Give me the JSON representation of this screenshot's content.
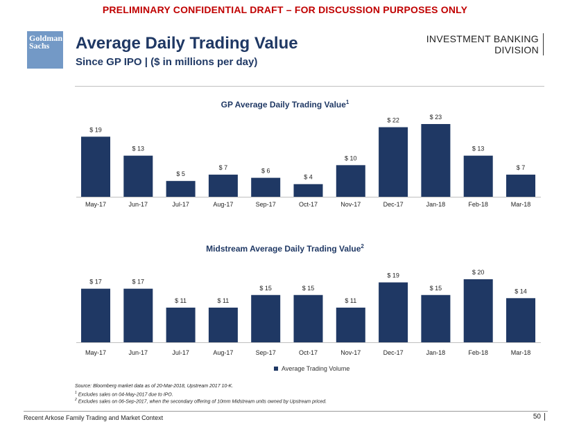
{
  "banner": "PRELIMINARY CONFIDENTIAL DRAFT – FOR DISCUSSION PURPOSES ONLY",
  "logo": {
    "line1": "Goldman",
    "line2": "Sachs"
  },
  "title": "Average Daily Trading Value",
  "subtitle": "Since GP IPO | ($ in millions per day)",
  "division": {
    "line1": "INVESTMENT BANKING",
    "line2": "DIVISION"
  },
  "colors": {
    "bar": "#1f3864",
    "title": "#1f3864",
    "banner": "#c00000"
  },
  "chart_data": [
    {
      "type": "bar",
      "title": "GP Average Daily Trading Value",
      "title_footnote": "1",
      "categories": [
        "May-17",
        "Jun-17",
        "Jul-17",
        "Aug-17",
        "Sep-17",
        "Oct-17",
        "Nov-17",
        "Dec-17",
        "Jan-18",
        "Feb-18",
        "Mar-18"
      ],
      "values": [
        19,
        13,
        5,
        7,
        6,
        4,
        10,
        22,
        23,
        13,
        7
      ],
      "data_labels": [
        "$ 19",
        "$ 13",
        "$ 5",
        "$ 7",
        "$ 6",
        "$ 4",
        "$ 10",
        "$ 22",
        "$ 23",
        "$ 13",
        "$ 7"
      ],
      "xlabel": "",
      "ylabel": "",
      "ylim": [
        0,
        23
      ]
    },
    {
      "type": "bar",
      "title": "Midstream Average Daily Trading Value",
      "title_footnote": "2",
      "categories": [
        "May-17",
        "Jun-17",
        "Jul-17",
        "Aug-17",
        "Sep-17",
        "Oct-17",
        "Nov-17",
        "Dec-17",
        "Jan-18",
        "Feb-18",
        "Mar-18"
      ],
      "values": [
        17,
        17,
        11,
        11,
        15,
        15,
        11,
        19,
        15,
        20,
        14
      ],
      "data_labels": [
        "$ 17",
        "$ 17",
        "$ 11",
        "$ 11",
        "$ 15",
        "$ 15",
        "$ 11",
        "$ 19",
        "$ 15",
        "$ 20",
        "$ 14"
      ],
      "legend": "Average Trading Volume",
      "xlabel": "",
      "ylabel": "",
      "ylim": [
        0,
        20
      ]
    }
  ],
  "notes": {
    "source": "Source: Bloomberg market data as of 20-Mar-2018, Upstream 2017 10-K.",
    "n1_mark": "1",
    "n1": " Excludes sales on 04-May-2017 due to IPO.",
    "n2_mark": "2",
    "n2": " Excludes sales on 06-Sep-2017, when the secondary offering of 10mm Midstream units owned by Upstream priced."
  },
  "footer": "Recent Arkose Family Trading and Market Context",
  "page_number": "50"
}
